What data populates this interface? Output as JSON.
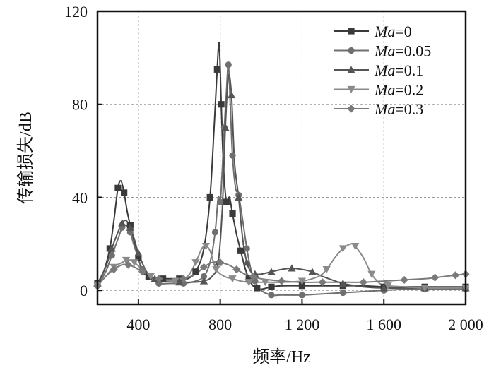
{
  "chart_data": {
    "type": "line",
    "title": "",
    "xlabel": "频率/Hz",
    "ylabel": "传输损失/dB",
    "xlim": [
      200,
      2000
    ],
    "ylim": [
      -6,
      120
    ],
    "xticks": [
      400,
      800,
      1200,
      1600,
      2000
    ],
    "xtick_labels": [
      "400",
      "800",
      "1 200",
      "1 600",
      "2 000"
    ],
    "yticks": [
      0,
      40,
      80,
      120
    ],
    "ytick_labels": [
      "0",
      "40",
      "80",
      "120"
    ],
    "grid": true,
    "legend_position": "top-right",
    "series": [
      {
        "name": "Ma=0",
        "label_italic": "Ma",
        "label_value": "=0",
        "marker": "square",
        "color": "#3a3a3a",
        "x": [
          200,
          230,
          260,
          280,
          300,
          315,
          330,
          345,
          360,
          380,
          400,
          420,
          450,
          480,
          520,
          560,
          600,
          640,
          680,
          720,
          750,
          770,
          785,
          795,
          805,
          815,
          830,
          845,
          860,
          880,
          900,
          920,
          940,
          960,
          980,
          1000,
          1050,
          1100,
          1200,
          1300,
          1400,
          1500,
          1600,
          1700,
          1800,
          1900,
          2000
        ],
        "y": [
          3,
          8,
          18,
          30,
          44,
          47,
          42,
          34,
          28,
          21,
          14,
          8,
          6,
          5,
          5,
          5,
          5,
          5,
          8,
          18,
          40,
          70,
          95,
          106,
          80,
          55,
          38,
          40,
          33,
          24,
          17,
          10,
          5,
          2,
          1,
          0.5,
          1.5,
          2,
          2,
          2,
          2,
          2,
          1.5,
          1.5,
          1.5,
          1.5,
          1.5
        ]
      },
      {
        "name": "Ma=0.05",
        "label_italic": "Ma",
        "label_value": "=0.05",
        "marker": "circle",
        "color": "#6f6f6f",
        "x": [
          200,
          240,
          270,
          300,
          320,
          340,
          360,
          380,
          420,
          460,
          500,
          560,
          620,
          680,
          720,
          750,
          775,
          790,
          800,
          810,
          820,
          830,
          840,
          850,
          860,
          875,
          890,
          910,
          930,
          950,
          970,
          1000,
          1050,
          1100,
          1200,
          1300,
          1400,
          1500,
          1600,
          1700,
          1800,
          1900,
          2000
        ],
        "y": [
          2,
          8,
          15,
          22,
          27,
          28,
          25,
          19,
          9,
          5,
          3,
          3,
          3,
          4,
          6,
          12,
          25,
          40,
          38,
          52,
          70,
          85,
          97,
          78,
          58,
          44,
          41,
          30,
          18,
          9,
          4,
          0,
          -2,
          -2,
          -2,
          -1.5,
          -1,
          -0.5,
          0,
          0.5,
          0.5,
          0.5,
          0.5
        ]
      },
      {
        "name": "Ma=0.1",
        "label_italic": "Ma",
        "label_value": "=0.1",
        "marker": "triangle-up",
        "color": "#555555",
        "x": [
          200,
          240,
          270,
          300,
          320,
          340,
          360,
          380,
          400,
          440,
          480,
          540,
          600,
          660,
          720,
          760,
          790,
          810,
          825,
          840,
          855,
          870,
          890,
          910,
          930,
          950,
          970,
          1000,
          1050,
          1100,
          1150,
          1200,
          1250,
          1300,
          1400,
          1500,
          1600,
          1700,
          1800,
          1900,
          2000
        ],
        "y": [
          3,
          10,
          18,
          25,
          29,
          30,
          27,
          22,
          16,
          8,
          5,
          4,
          3.5,
          3.5,
          4,
          6,
          12,
          35,
          70,
          92,
          84,
          55,
          40,
          22,
          12,
          8,
          7,
          7,
          8,
          9,
          9.5,
          9,
          8,
          6,
          3,
          1.5,
          1,
          1,
          1,
          1,
          1
        ]
      },
      {
        "name": "Ma=0.2",
        "label_italic": "Ma",
        "label_value": "=0.2",
        "marker": "triangle-down",
        "color": "#8a8a8a",
        "x": [
          200,
          240,
          280,
          320,
          340,
          360,
          380,
          420,
          460,
          520,
          580,
          640,
          680,
          710,
          730,
          750,
          780,
          820,
          860,
          900,
          940,
          980,
          1020,
          1100,
          1200,
          1280,
          1320,
          1360,
          1400,
          1440,
          1460,
          1500,
          1540,
          1580,
          1620,
          1700,
          1800,
          1900,
          2000
        ],
        "y": [
          2,
          6,
          10,
          12,
          13,
          13,
          12,
          9,
          6,
          4.5,
          4,
          6,
          12,
          18,
          19,
          17,
          9,
          6,
          5,
          4,
          3.5,
          3.5,
          3.5,
          3.5,
          4,
          6,
          9,
          14,
          18,
          20,
          19,
          14,
          7,
          3,
          2,
          1.5,
          1,
          1,
          1
        ]
      },
      {
        "name": "Ma=0.3",
        "label_italic": "Ma",
        "label_value": "=0.3",
        "marker": "diamond",
        "color": "#7a7a7a",
        "x": [
          200,
          240,
          280,
          320,
          350,
          380,
          420,
          460,
          500,
          560,
          620,
          680,
          720,
          760,
          800,
          840,
          880,
          920,
          960,
          1000,
          1100,
          1200,
          1300,
          1400,
          1500,
          1600,
          1700,
          1800,
          1850,
          1900,
          1950,
          2000
        ],
        "y": [
          2,
          6,
          9,
          11,
          11,
          10,
          8,
          6,
          5,
          4.5,
          5,
          7,
          10,
          12,
          12,
          11,
          9,
          7,
          6,
          5,
          4,
          3.5,
          3.5,
          3.5,
          3.5,
          4,
          4.5,
          5,
          5.5,
          6,
          6.5,
          7
        ]
      }
    ]
  }
}
